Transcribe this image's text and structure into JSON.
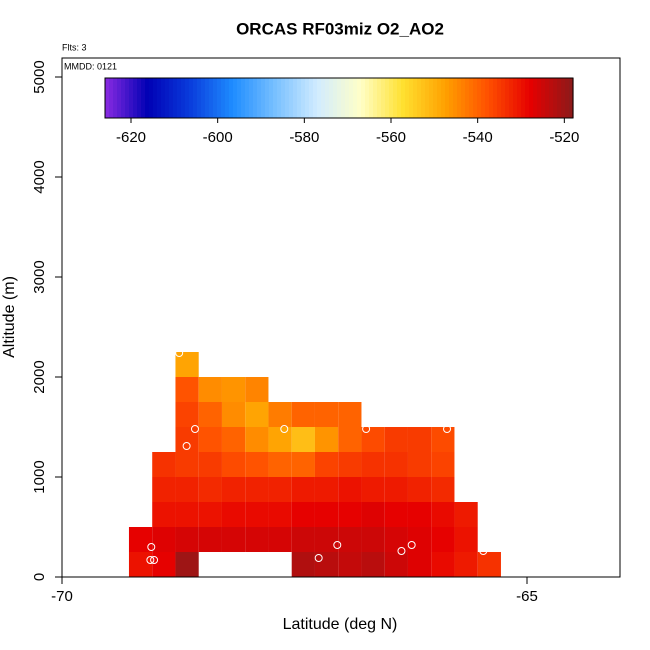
{
  "chart_data": {
    "type": "heatmap",
    "title": "ORCAS RF03miz O2_AO2",
    "subtitle": "Flts: 3",
    "annotation": "MMDD: 0121",
    "x_label": "Latitude (deg N)",
    "y_label": "Altitude (m)",
    "xlim": [
      -70,
      -64
    ],
    "xticks": [
      -70,
      -65
    ],
    "ylim": [
      0,
      5190
    ],
    "yticks": [
      0,
      1000,
      2000,
      3000,
      4000,
      5000
    ],
    "xbins": [
      -69.28,
      -69.03,
      -68.78,
      -68.53,
      -68.28,
      -68.03,
      -67.78,
      -67.53,
      -67.28,
      -67.03,
      -66.78,
      -66.53,
      -66.28,
      -66.03,
      -65.78,
      -65.53,
      -65.28
    ],
    "ybins": [
      0,
      250,
      500,
      750,
      1000,
      1250,
      1500,
      1750,
      2000,
      2250
    ],
    "values": [
      [
        -530,
        -528,
        -520,
        null,
        null,
        null,
        null,
        -522,
        -523,
        -524,
        -523,
        -525,
        -527,
        -529,
        -531,
        -534
      ],
      [
        -528,
        -527,
        -526,
        -526,
        -526,
        -526,
        -526,
        -525,
        -525,
        -525,
        -525,
        -526,
        -527,
        -528,
        -530,
        null
      ],
      [
        null,
        -530,
        -530,
        -530,
        -529,
        -529,
        -529,
        -528,
        -528,
        -528,
        -527,
        -528,
        -528,
        -529,
        -531,
        null
      ],
      [
        null,
        -532,
        -532,
        -533,
        -532,
        -532,
        -532,
        -531,
        -531,
        -530,
        -531,
        -531,
        -532,
        -533,
        null,
        null
      ],
      [
        null,
        -534,
        -535,
        -535,
        -537,
        -538,
        -540,
        -540,
        -536,
        -535,
        -534,
        -534,
        -535,
        -536,
        null,
        null
      ],
      [
        null,
        null,
        -535,
        -538,
        -540,
        -545,
        -548,
        -552,
        -546,
        -540,
        -537,
        -535,
        -535,
        -537,
        null,
        null
      ],
      [
        null,
        null,
        -536,
        -540,
        -545,
        -548,
        -543,
        -540,
        -540,
        -540,
        null,
        null,
        null,
        null,
        null,
        null
      ],
      [
        null,
        null,
        -538,
        -545,
        -546,
        -544,
        null,
        null,
        null,
        null,
        null,
        null,
        null,
        null,
        null,
        null
      ],
      [
        null,
        null,
        -548,
        null,
        null,
        null,
        null,
        null,
        null,
        null,
        null,
        null,
        null,
        null,
        null,
        null
      ]
    ],
    "colorbar": {
      "lim": [
        -626,
        -518
      ],
      "ticks": [
        -620,
        -600,
        -580,
        -560,
        -540,
        -520
      ],
      "colors": [
        "#8a2be2",
        "#0000b4",
        "#0a3cdc",
        "#1e8cff",
        "#78c0ff",
        "#d2ecff",
        "#ffffc8",
        "#ffe030",
        "#ffa000",
        "#ff5000",
        "#e60000",
        "#8b1a1a"
      ]
    },
    "flight_points": {
      "x": [
        -68.74,
        -68.57,
        -68.66,
        -67.61,
        -66.73,
        -65.86,
        -69.04,
        -69.05,
        -69.01,
        -67.24,
        -67.04,
        -66.35,
        -66.24,
        -65.47
      ],
      "y": [
        2240,
        1480,
        1310,
        1480,
        1480,
        1480,
        300,
        170,
        170,
        190,
        320,
        260,
        320,
        260
      ],
      "color": "#ffffff"
    }
  }
}
